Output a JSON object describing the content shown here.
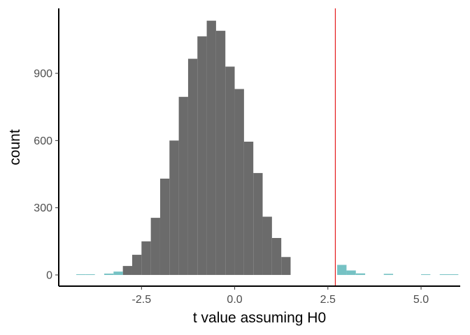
{
  "chart_data": {
    "type": "bar",
    "xlabel": "t value assuming H0",
    "ylabel": "count",
    "xlim": [
      -4.72,
      6.05
    ],
    "ylim": [
      -50,
      1190
    ],
    "x_ticks": [
      -2.5,
      0.0,
      2.5,
      5.0
    ],
    "x_tick_labels": [
      "-2.5",
      "0.0",
      "2.5",
      "5.0"
    ],
    "y_ticks": [
      0,
      300,
      600,
      900
    ],
    "y_tick_labels": [
      "0",
      "300",
      "600",
      "900"
    ],
    "grid": false,
    "legend": "none",
    "bin_width": 0.25,
    "series": [
      {
        "fill": "#6b6b6b",
        "bins": [
          {
            "x0": -3.0,
            "x1": -2.75,
            "count": 40
          },
          {
            "x0": -2.75,
            "x1": -2.5,
            "count": 90
          },
          {
            "x0": -2.5,
            "x1": -2.25,
            "count": 150
          },
          {
            "x0": -2.25,
            "x1": -2.0,
            "count": 255
          },
          {
            "x0": -2.0,
            "x1": -1.75,
            "count": 430
          },
          {
            "x0": -1.75,
            "x1": -1.5,
            "count": 600
          },
          {
            "x0": -1.5,
            "x1": -1.25,
            "count": 795
          },
          {
            "x0": -1.25,
            "x1": -1.0,
            "count": 965
          },
          {
            "x0": -1.0,
            "x1": -0.75,
            "count": 1065
          },
          {
            "x0": -0.75,
            "x1": -0.5,
            "count": 1135
          },
          {
            "x0": -0.5,
            "x1": -0.25,
            "count": 1090
          },
          {
            "x0": -0.25,
            "x1": 0.0,
            "count": 930
          },
          {
            "x0": 0.0,
            "x1": 0.25,
            "count": 830
          },
          {
            "x0": 0.25,
            "x1": 0.5,
            "count": 595
          },
          {
            "x0": 0.5,
            "x1": 0.75,
            "count": 455
          },
          {
            "x0": 0.75,
            "x1": 1.0,
            "count": 260
          },
          {
            "x0": 1.0,
            "x1": 1.25,
            "count": 165
          },
          {
            "x0": 1.25,
            "x1": 1.5,
            "count": 80
          }
        ]
      },
      {
        "fill": "#76c2c4",
        "bins": [
          {
            "x0": -4.25,
            "x1": -4.0,
            "count": 3
          },
          {
            "x0": -4.0,
            "x1": -3.75,
            "count": 3
          },
          {
            "x0": -3.5,
            "x1": -3.25,
            "count": 6
          },
          {
            "x0": -3.25,
            "x1": -3.0,
            "count": 15
          },
          {
            "x0": 2.75,
            "x1": 3.0,
            "count": 45
          },
          {
            "x0": 3.0,
            "x1": 3.25,
            "count": 20
          },
          {
            "x0": 3.25,
            "x1": 3.5,
            "count": 7
          },
          {
            "x0": 4.0,
            "x1": 4.25,
            "count": 5
          },
          {
            "x0": 5.0,
            "x1": 5.25,
            "count": 2
          },
          {
            "x0": 5.5,
            "x1": 5.75,
            "count": 2
          },
          {
            "x0": 5.75,
            "x1": 6.0,
            "count": 2
          }
        ]
      }
    ],
    "reference_line": {
      "x": 2.7,
      "color": "#e41a1c"
    }
  }
}
